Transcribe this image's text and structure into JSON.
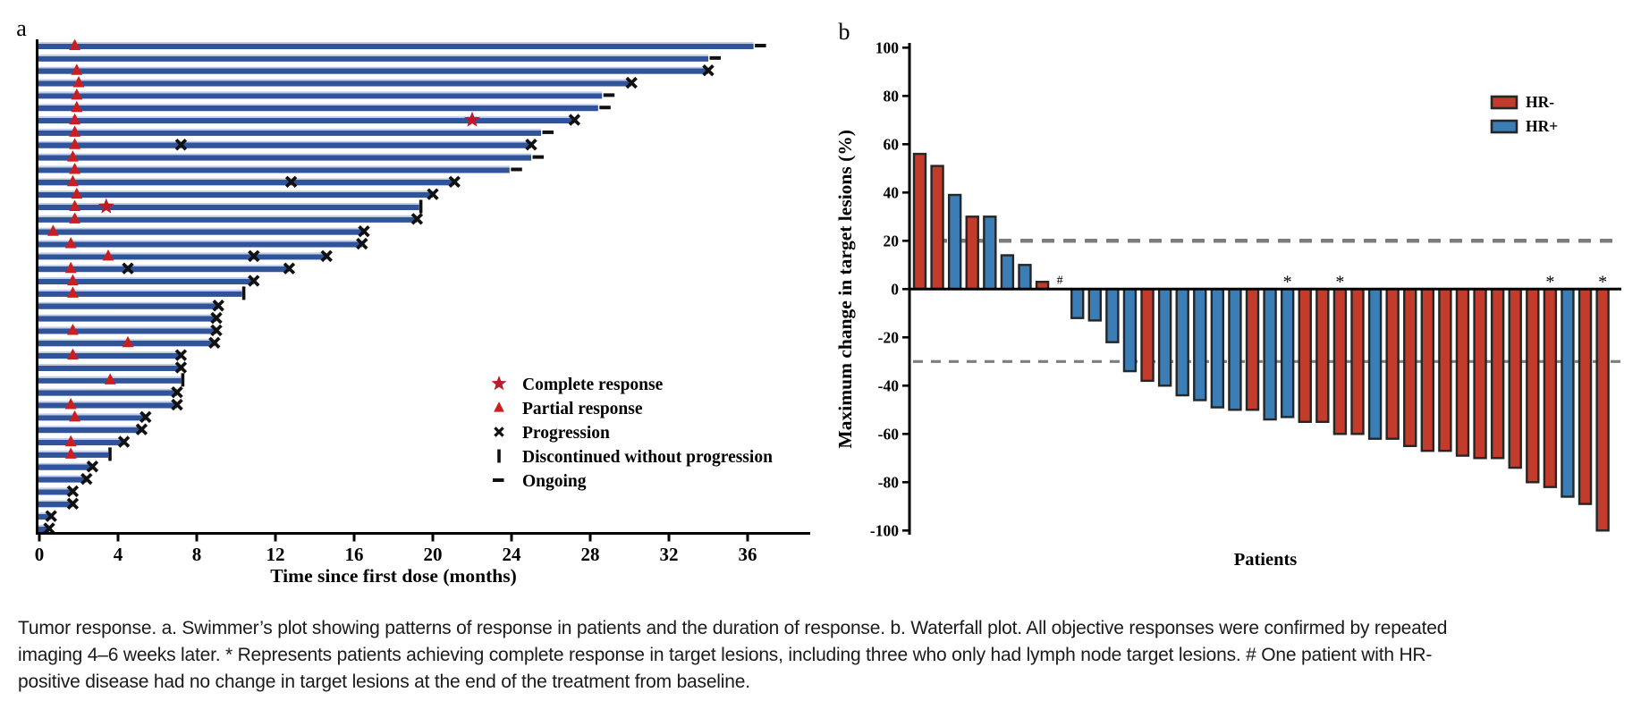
{
  "caption": {
    "text": "Tumor response. a. Swimmer’s plot showing patterns of response in patients and the duration of response. b. Waterfall plot. All objective responses were confirmed by repeated imaging 4–6 weeks later. * Represents patients achieving complete response in target lesions, including three who only had lymph node target lesions. # One patient with HR-positive disease had no change in target lesions at the end of the treatment from baseline."
  },
  "colors": {
    "swimmer_bar": "#30549a",
    "swimmer_bar_highlight": "#bfcbe7",
    "triangle_red": "#cb1e21",
    "star_red": "#bd1b2c",
    "marker_black": "#111111",
    "waterfall_red": "#c23b2b",
    "waterfall_blue": "#3b7db5",
    "bar_outline": "#262626",
    "dash_gray": "#7d7d7d",
    "axis_black": "#000000"
  },
  "panel_a": {
    "label": "a",
    "legend": [
      {
        "symbol": "star",
        "label": "Complete response"
      },
      {
        "symbol": "triangle",
        "label": "Partial response"
      },
      {
        "symbol": "x",
        "label": "Progression"
      },
      {
        "symbol": "vbar",
        "label": "Discontinued without progression"
      },
      {
        "symbol": "dash",
        "label": "Ongoing"
      }
    ],
    "chart_data": {
      "type": "bar",
      "orientation": "horizontal-swimmer",
      "xlabel": "Time since first dose (months)",
      "x_ticks": [
        0,
        4,
        8,
        12,
        16,
        20,
        24,
        28,
        32,
        36
      ],
      "xlim": [
        0,
        39
      ],
      "patients": [
        {
          "duration": 36.3,
          "end": "ongoing",
          "pr": [
            1.8
          ]
        },
        {
          "duration": 34.0,
          "end": "ongoing"
        },
        {
          "duration": 34.0,
          "end": "progression",
          "pr": [
            1.9
          ]
        },
        {
          "duration": 30.1,
          "end": "progression",
          "pr": [
            2.0
          ]
        },
        {
          "duration": 28.6,
          "end": "ongoing",
          "pr": [
            1.9
          ]
        },
        {
          "duration": 28.4,
          "end": "ongoing",
          "pr": [
            1.9
          ]
        },
        {
          "duration": 27.2,
          "end": "progression",
          "pr": [
            1.8
          ],
          "cr": [
            22.0
          ]
        },
        {
          "duration": 25.5,
          "end": "ongoing",
          "pr": [
            1.8
          ]
        },
        {
          "duration": 25.0,
          "end": "progression",
          "pr": [
            1.8
          ],
          "mid_progression": [
            7.2
          ]
        },
        {
          "duration": 25.0,
          "end": "ongoing",
          "pr": [
            1.7
          ]
        },
        {
          "duration": 23.9,
          "end": "ongoing",
          "pr": [
            1.8
          ]
        },
        {
          "duration": 21.1,
          "end": "progression",
          "pr": [
            1.7
          ],
          "mid_progression": [
            12.8
          ]
        },
        {
          "duration": 20.0,
          "end": "progression",
          "pr": [
            1.9
          ]
        },
        {
          "duration": 19.3,
          "end": "discontinued",
          "pr": [
            1.8
          ],
          "cr": [
            3.4
          ]
        },
        {
          "duration": 19.2,
          "end": "progression",
          "pr": [
            1.8
          ]
        },
        {
          "duration": 16.5,
          "end": "progression",
          "pr": [
            0.7
          ]
        },
        {
          "duration": 16.4,
          "end": "progression",
          "pr": [
            1.6
          ]
        },
        {
          "duration": 14.6,
          "end": "progression",
          "pr": [
            3.5
          ],
          "mid_progression": [
            10.9
          ]
        },
        {
          "duration": 12.7,
          "end": "progression",
          "pr": [
            1.6
          ],
          "mid_progression": [
            4.5
          ]
        },
        {
          "duration": 10.9,
          "end": "progression",
          "pr": [
            1.7
          ]
        },
        {
          "duration": 10.3,
          "end": "discontinued",
          "pr": [
            1.7
          ]
        },
        {
          "duration": 9.1,
          "end": "progression"
        },
        {
          "duration": 9.0,
          "end": "progression"
        },
        {
          "duration": 9.0,
          "end": "progression",
          "pr": [
            1.7
          ]
        },
        {
          "duration": 8.9,
          "end": "progression",
          "pr": [
            4.5
          ]
        },
        {
          "duration": 7.2,
          "end": "progression",
          "pr": [
            1.7
          ]
        },
        {
          "duration": 7.2,
          "end": "progression"
        },
        {
          "duration": 7.2,
          "end": "discontinued",
          "pr": [
            3.6
          ]
        },
        {
          "duration": 7.0,
          "end": "progression"
        },
        {
          "duration": 7.0,
          "end": "progression",
          "pr": [
            1.6
          ]
        },
        {
          "duration": 5.4,
          "end": "progression",
          "pr": [
            1.8
          ]
        },
        {
          "duration": 5.2,
          "end": "progression"
        },
        {
          "duration": 4.3,
          "end": "progression",
          "pr": [
            1.6
          ]
        },
        {
          "duration": 3.5,
          "end": "discontinued",
          "pr": [
            1.6
          ]
        },
        {
          "duration": 2.7,
          "end": "progression"
        },
        {
          "duration": 2.4,
          "end": "progression"
        },
        {
          "duration": 1.7,
          "end": "progression"
        },
        {
          "duration": 1.7,
          "end": "progression"
        },
        {
          "duration": 0.6,
          "end": "progression"
        },
        {
          "duration": 0.5,
          "end": "progression"
        }
      ]
    }
  },
  "panel_b": {
    "label": "b",
    "legend": [
      {
        "swatch": "#c23b2b",
        "label": "HR-"
      },
      {
        "swatch": "#3b7db5",
        "label": "HR+"
      }
    ],
    "chart_data": {
      "type": "bar",
      "orientation": "waterfall",
      "ylabel": "Maximum change in target lesions (%)",
      "xlabel": "Patients",
      "ylim": [
        -100,
        100
      ],
      "y_ticks": [
        100,
        80,
        60,
        40,
        20,
        0,
        -20,
        -40,
        -60,
        -80,
        -100
      ],
      "reference_lines": [
        20,
        -30
      ],
      "patients": [
        {
          "value": 56,
          "group": "HR-"
        },
        {
          "value": 51,
          "group": "HR-"
        },
        {
          "value": 39,
          "group": "HR+"
        },
        {
          "value": 30,
          "group": "HR-"
        },
        {
          "value": 30,
          "group": "HR+"
        },
        {
          "value": 14,
          "group": "HR+"
        },
        {
          "value": 10,
          "group": "HR+"
        },
        {
          "value": 3,
          "group": "HR-"
        },
        {
          "value": 0,
          "group": "HR+",
          "annotation": "#"
        },
        {
          "value": -12,
          "group": "HR+"
        },
        {
          "value": -13,
          "group": "HR+"
        },
        {
          "value": -22,
          "group": "HR+"
        },
        {
          "value": -34,
          "group": "HR+"
        },
        {
          "value": -38,
          "group": "HR-"
        },
        {
          "value": -40,
          "group": "HR+"
        },
        {
          "value": -44,
          "group": "HR+"
        },
        {
          "value": -46,
          "group": "HR+"
        },
        {
          "value": -49,
          "group": "HR+"
        },
        {
          "value": -50,
          "group": "HR+"
        },
        {
          "value": -50,
          "group": "HR-"
        },
        {
          "value": -54,
          "group": "HR+"
        },
        {
          "value": -53,
          "group": "HR+",
          "annotation": "*"
        },
        {
          "value": -55,
          "group": "HR-"
        },
        {
          "value": -55,
          "group": "HR-"
        },
        {
          "value": -60,
          "group": "HR-",
          "annotation": "*"
        },
        {
          "value": -60,
          "group": "HR-"
        },
        {
          "value": -62,
          "group": "HR+"
        },
        {
          "value": -62,
          "group": "HR-"
        },
        {
          "value": -65,
          "group": "HR-"
        },
        {
          "value": -67,
          "group": "HR-"
        },
        {
          "value": -67,
          "group": "HR-"
        },
        {
          "value": -69,
          "group": "HR-"
        },
        {
          "value": -70,
          "group": "HR-"
        },
        {
          "value": -70,
          "group": "HR-"
        },
        {
          "value": -74,
          "group": "HR-"
        },
        {
          "value": -80,
          "group": "HR-"
        },
        {
          "value": -82,
          "group": "HR-",
          "annotation": "*"
        },
        {
          "value": -86,
          "group": "HR+"
        },
        {
          "value": -89,
          "group": "HR-"
        },
        {
          "value": -100,
          "group": "HR-",
          "annotation": "*"
        }
      ]
    }
  }
}
